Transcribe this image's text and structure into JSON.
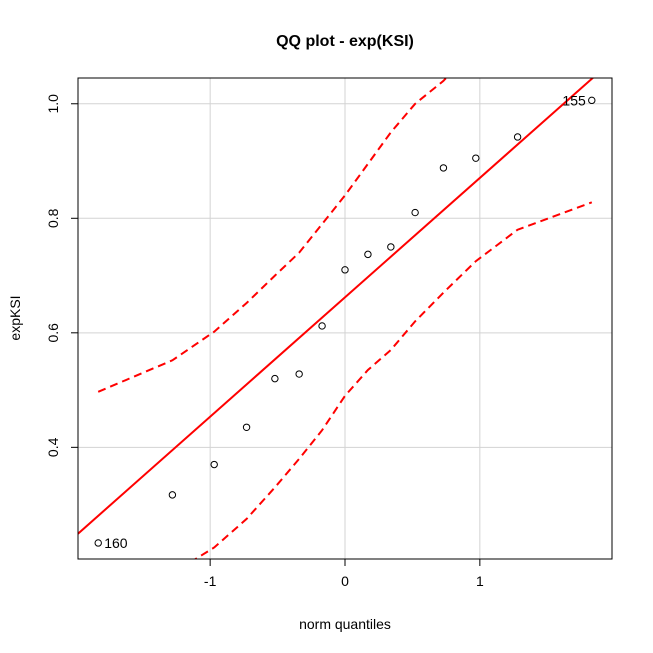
{
  "chart_data": {
    "type": "scatter",
    "title": "QQ plot - exp(KSI)",
    "xlabel": "norm quantiles",
    "ylabel": "expKSI",
    "xlim": [
      -1.98,
      1.98
    ],
    "ylim": [
      0.205,
      1.045
    ],
    "x_ticks": [
      -1,
      0,
      1
    ],
    "x_tick_labels": [
      "-1",
      "0",
      "1"
    ],
    "y_ticks": [
      0.4,
      0.6,
      0.8,
      1.0
    ],
    "y_tick_labels": [
      "0.4",
      "0.6",
      "0.8",
      "1.0"
    ],
    "grid": true,
    "points": {
      "x": [
        -1.83,
        -1.28,
        -0.97,
        -0.73,
        -0.52,
        -0.34,
        -0.17,
        0.0,
        0.17,
        0.34,
        0.52,
        0.73,
        0.97,
        1.28,
        1.83
      ],
      "y": [
        0.233,
        0.317,
        0.37,
        0.435,
        0.52,
        0.528,
        0.612,
        0.71,
        0.737,
        0.75,
        0.81,
        0.888,
        0.905,
        0.942,
        1.006
      ]
    },
    "point_labels": [
      {
        "text": "160",
        "x": -1.83,
        "y": 0.233,
        "side": "right"
      },
      {
        "text": "155",
        "x": 1.83,
        "y": 1.006,
        "side": "left"
      }
    ],
    "reference_line": {
      "intercept": 0.662,
      "slope": 0.2085,
      "color": "#ff0000"
    },
    "envelope": {
      "color": "#ff0000",
      "style": "dashed",
      "x": [
        -1.83,
        -1.28,
        -0.97,
        -0.73,
        -0.52,
        -0.34,
        -0.17,
        0.0,
        0.17,
        0.34,
        0.52,
        0.73,
        0.97,
        1.28,
        1.83
      ],
      "upper": [
        0.497,
        0.552,
        0.602,
        0.652,
        0.7,
        0.74,
        0.79,
        0.84,
        0.895,
        0.95,
        1.0,
        1.04,
        1.1,
        1.165,
        1.28
      ],
      "lower": [
        0.04,
        0.18,
        0.225,
        0.275,
        0.33,
        0.38,
        0.43,
        0.49,
        0.535,
        0.57,
        0.62,
        0.67,
        0.725,
        0.78,
        0.828
      ]
    },
    "colors": {
      "line": "#ff0000",
      "grid": "#d3d3d3",
      "points": "#000000"
    }
  }
}
